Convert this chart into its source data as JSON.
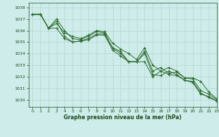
{
  "title": "Graphe pression niveau de la mer (hPa)",
  "background_color": "#ceecea",
  "grid_color": "#b8d8d4",
  "text_color": "#1a4a1a",
  "line_color": "#2d6a2d",
  "xlim": [
    -0.5,
    23
  ],
  "ylim": [
    1029.4,
    1038.4
  ],
  "xticks": [
    0,
    1,
    2,
    3,
    4,
    5,
    6,
    7,
    8,
    9,
    10,
    11,
    12,
    13,
    14,
    15,
    16,
    17,
    18,
    19,
    20,
    21,
    22,
    23
  ],
  "yticks": [
    1030,
    1031,
    1032,
    1033,
    1034,
    1035,
    1036,
    1037,
    1038
  ],
  "series": [
    [
      1037.4,
      1037.4,
      1036.2,
      1037.0,
      1036.0,
      1035.3,
      1035.2,
      1035.5,
      1035.9,
      1035.8,
      1034.5,
      1034.2,
      1033.3,
      1033.3,
      1033.3,
      1032.0,
      1032.5,
      1032.2,
      1032.1,
      1031.7,
      1031.6,
      1030.6,
      1030.2,
      1029.9
    ],
    [
      1037.4,
      1037.4,
      1036.2,
      1036.6,
      1035.8,
      1035.5,
      1035.3,
      1035.6,
      1036.0,
      1035.9,
      1034.9,
      1034.4,
      1034.0,
      1033.5,
      1034.5,
      1033.0,
      1032.5,
      1032.8,
      1032.5,
      1031.9,
      1031.9,
      1031.6,
      1030.7,
      1030.1
    ],
    [
      1037.4,
      1037.4,
      1036.2,
      1036.8,
      1035.5,
      1035.0,
      1035.1,
      1035.3,
      1035.7,
      1035.7,
      1034.5,
      1034.0,
      1033.3,
      1033.3,
      1034.2,
      1032.5,
      1032.8,
      1032.3,
      1032.4,
      1031.9,
      1031.8,
      1030.8,
      1030.5,
      1030.0
    ],
    [
      1037.4,
      1037.4,
      1036.2,
      1036.2,
      1035.3,
      1035.0,
      1035.1,
      1035.2,
      1035.6,
      1035.6,
      1034.3,
      1033.8,
      1033.3,
      1033.3,
      1034.0,
      1032.2,
      1032.1,
      1032.5,
      1032.2,
      1031.7,
      1031.5,
      1030.5,
      1030.3,
      1029.9
    ]
  ],
  "marker_indices": {
    "0": [
      1,
      2,
      3,
      4,
      5,
      6,
      7,
      8,
      9,
      14,
      15,
      16,
      17,
      18,
      19,
      20,
      21,
      22,
      23
    ],
    "1": [
      1,
      2,
      3,
      4,
      5,
      6,
      7,
      8,
      9,
      14,
      15,
      16,
      17,
      18,
      19,
      20,
      21,
      22,
      23
    ],
    "2": [
      1,
      2,
      3,
      4,
      5,
      6,
      7,
      8,
      9,
      14,
      15,
      16,
      17,
      18,
      19,
      20,
      21,
      22,
      23
    ],
    "3": [
      1,
      2,
      3,
      4,
      5,
      6,
      7,
      8,
      9,
      14,
      15,
      16,
      17,
      18,
      19,
      20,
      21,
      22,
      23
    ]
  }
}
